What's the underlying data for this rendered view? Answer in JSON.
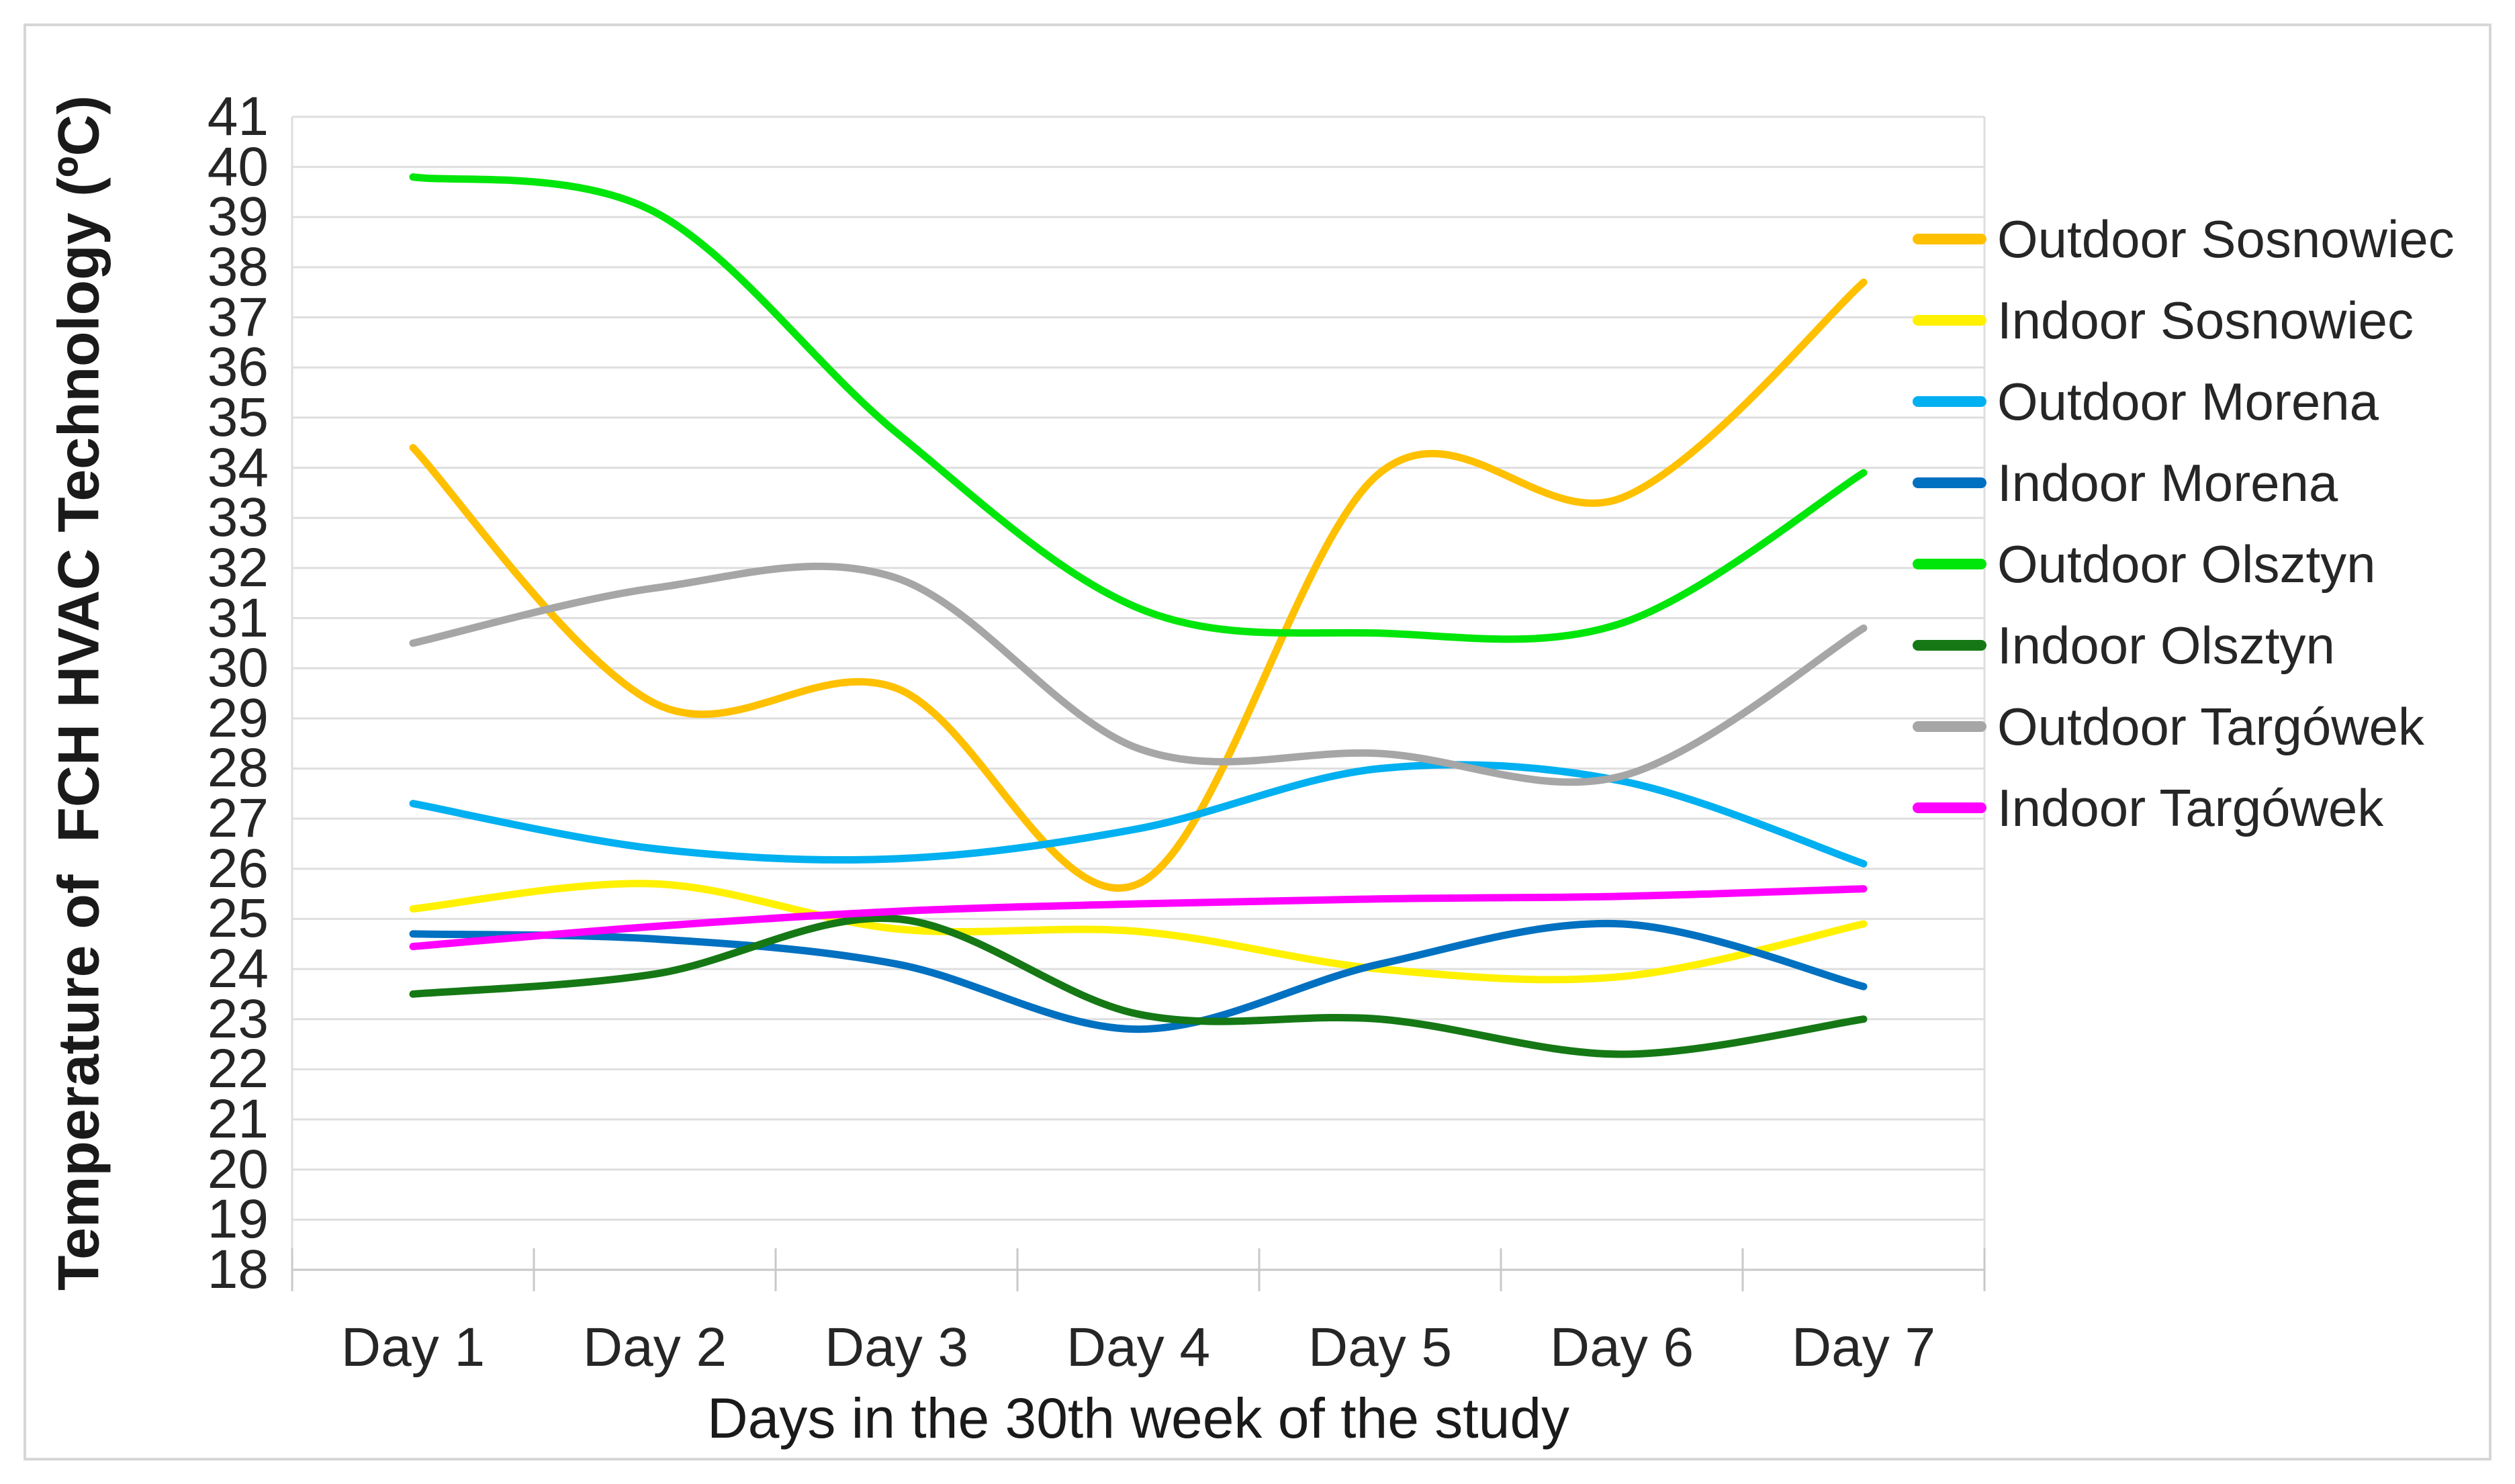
{
  "chart_data": {
    "type": "line",
    "smooth": true,
    "title": "",
    "xlabel": "Days in the 30th week of the study",
    "ylabel": "Temperature of  FCH HVAC Technology (ºC)",
    "categories": [
      "Day 1",
      "Day 2",
      "Day 3",
      "Day 4",
      "Day 5",
      "Day 6",
      "Day 7"
    ],
    "ylim": [
      18,
      41
    ],
    "ytick_step": 1,
    "grid": true,
    "legend_position": "right",
    "series": [
      {
        "name": "Outdoor Sosnowiec",
        "color": "#FFC000",
        "values": [
          34.4,
          29.3,
          29.6,
          25.7,
          33.9,
          33.4,
          37.7
        ]
      },
      {
        "name": "Indoor Sosnowiec",
        "color": "#FFF100",
        "values": [
          25.2,
          25.7,
          24.8,
          24.75,
          24.0,
          23.85,
          24.9
        ]
      },
      {
        "name": "Outdoor Morena",
        "color": "#00B0F0",
        "values": [
          27.3,
          26.4,
          26.2,
          26.8,
          28.0,
          27.75,
          26.1
        ]
      },
      {
        "name": "Indoor Morena",
        "color": "#0070C0",
        "values": [
          24.7,
          24.6,
          24.1,
          22.8,
          24.1,
          24.9,
          23.65
        ]
      },
      {
        "name": "Outdoor Olsztyn",
        "color": "#00E60A",
        "values": [
          39.8,
          39.1,
          34.7,
          31.2,
          30.7,
          30.9,
          33.9
        ]
      },
      {
        "name": "Indoor Olsztyn",
        "color": "#157815",
        "values": [
          23.5,
          23.9,
          25.0,
          23.1,
          23.0,
          22.3,
          23.0
        ]
      },
      {
        "name": "Outdoor Targówek",
        "color": "#A6A6A6",
        "values": [
          30.5,
          31.6,
          31.8,
          28.4,
          28.3,
          27.85,
          30.8
        ]
      },
      {
        "name": "Indoor Targówek",
        "color": "#FF00FF",
        "values": [
          24.45,
          24.85,
          25.15,
          25.3,
          25.4,
          25.45,
          25.6
        ]
      }
    ],
    "colors": {
      "gridline": "#DEDEDE",
      "axis_line": "#C9C9C9",
      "figure_border": "#D6D6D6",
      "text": "#262626"
    }
  }
}
